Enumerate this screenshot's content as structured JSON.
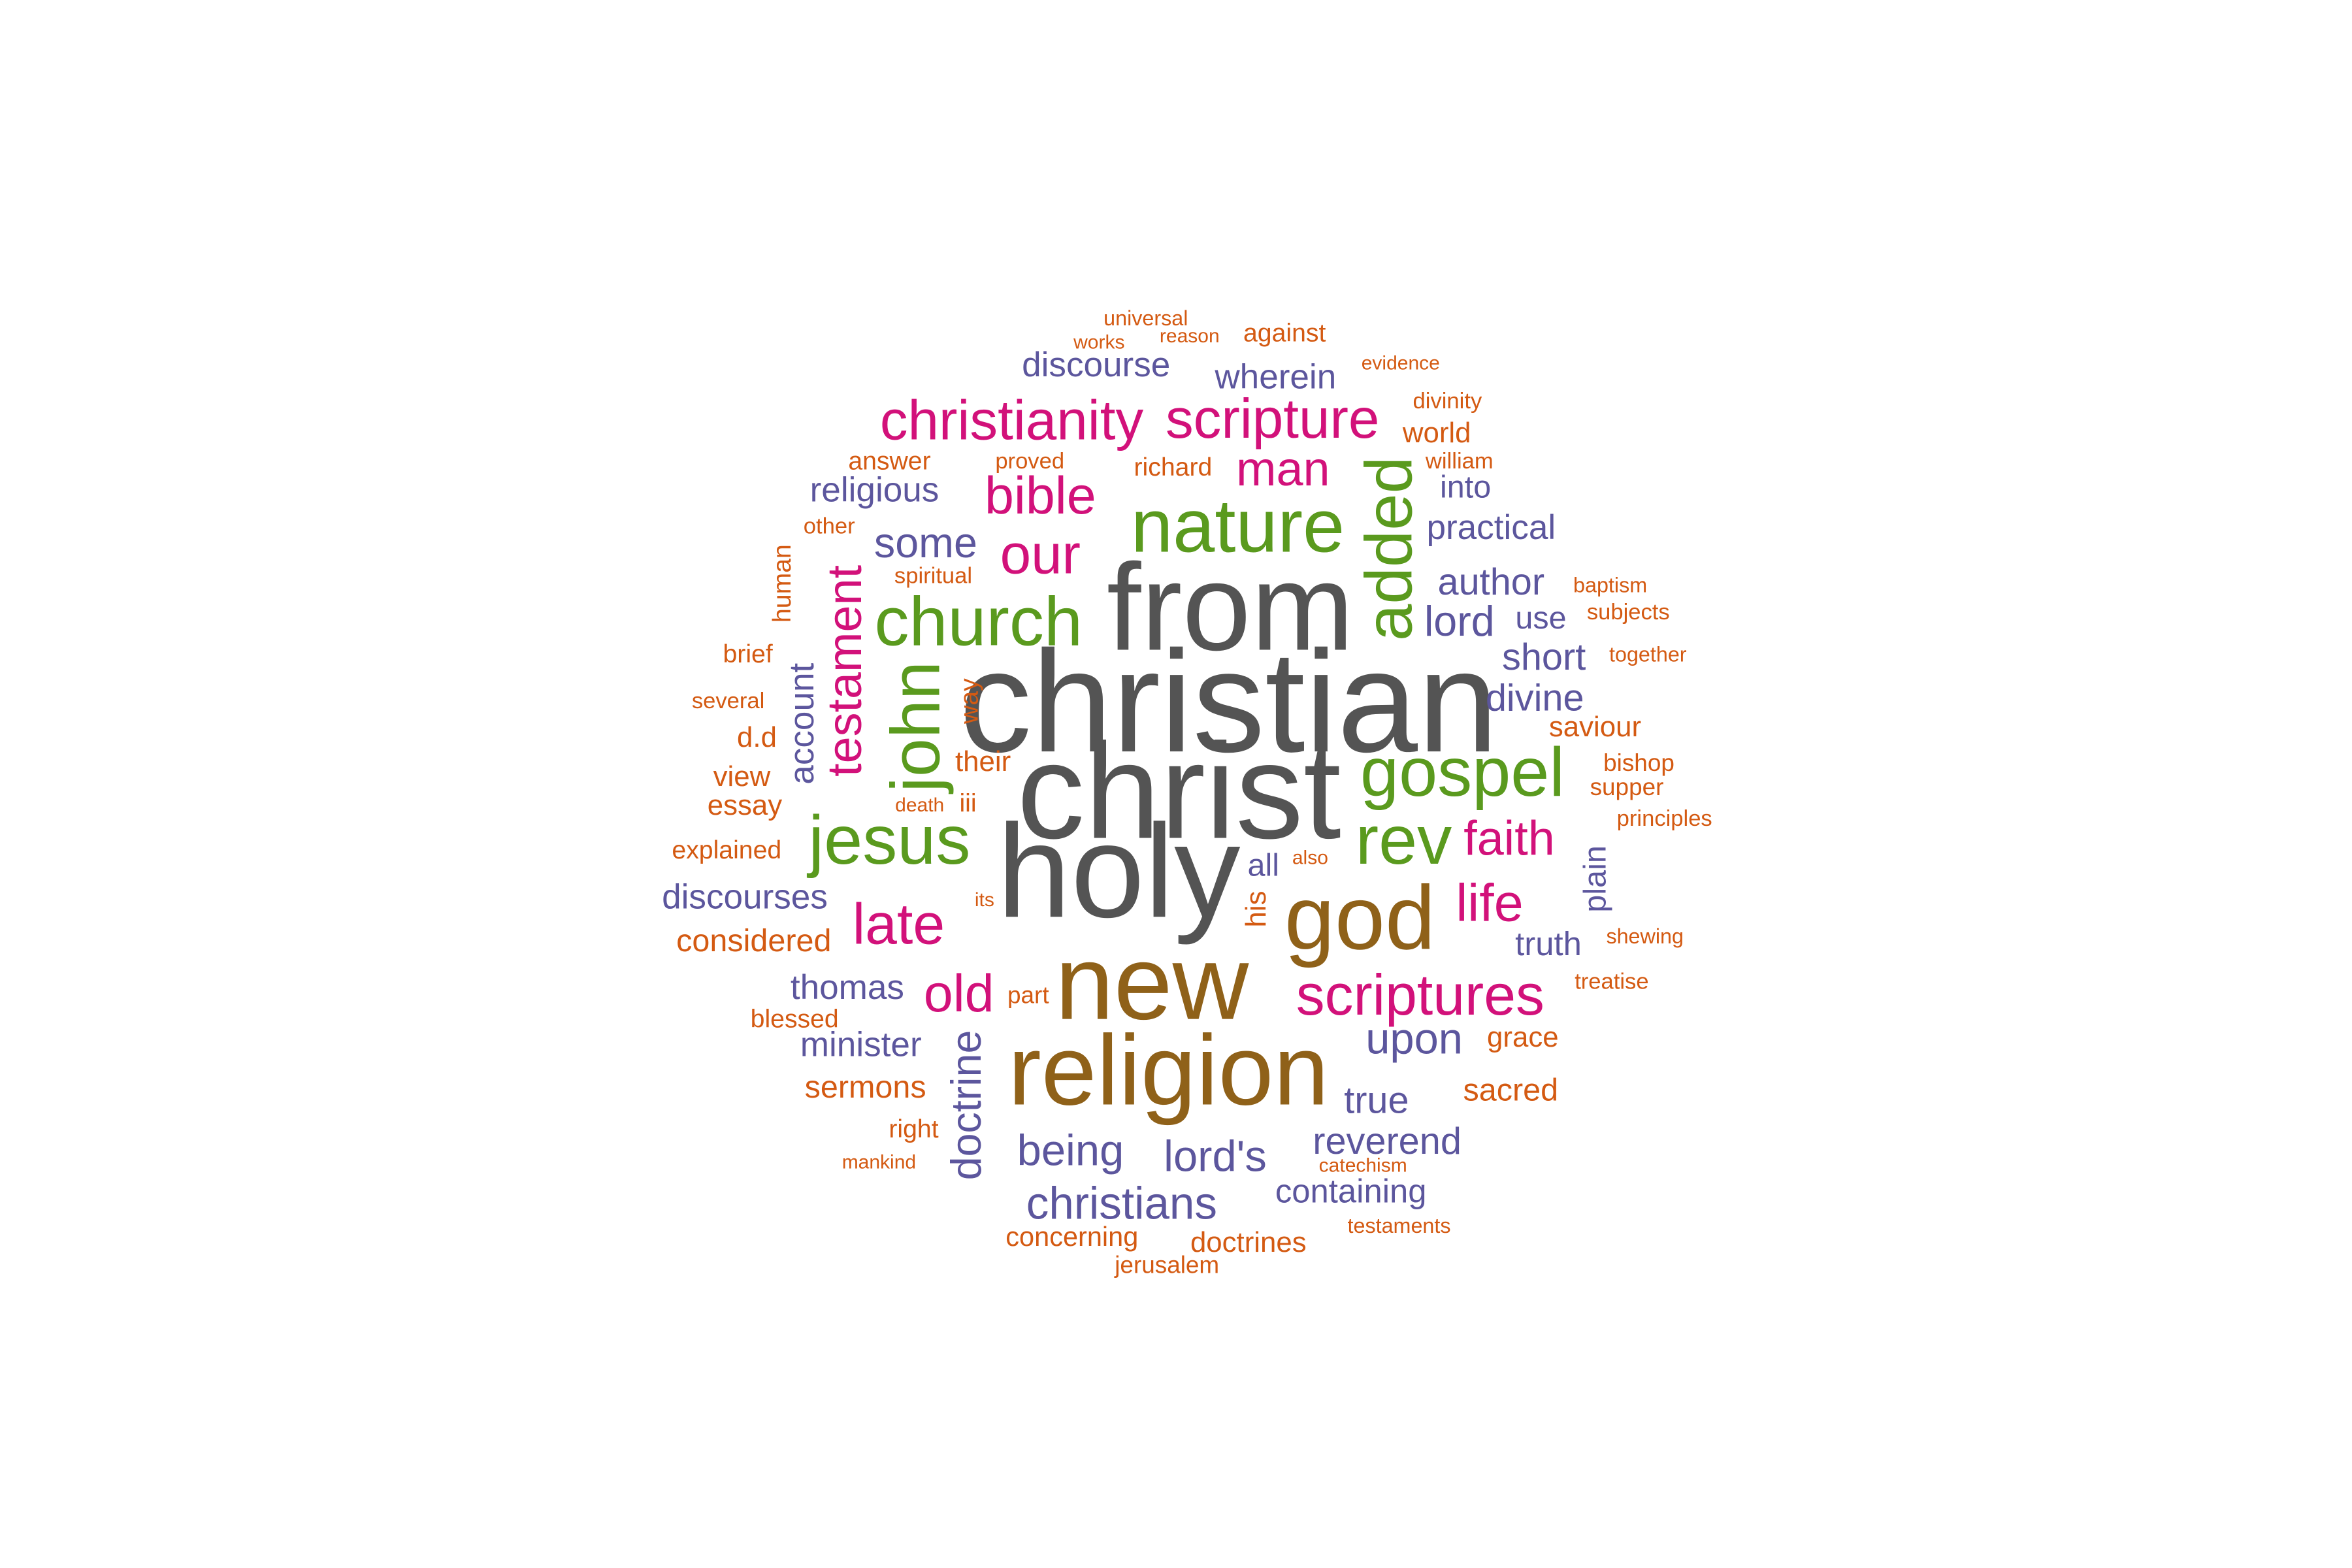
{
  "chart_data": {
    "type": "wordcloud",
    "title": "",
    "colors": {
      "gray": "#545454",
      "brown": "#8f6119",
      "green": "#5a9a1e",
      "magenta": "#d2117a",
      "purple": "#5c569d",
      "orange": "#d45a12"
    },
    "words": [
      {
        "text": "christian",
        "weight": 100,
        "color": "gray"
      },
      {
        "text": "christ",
        "weight": 98,
        "color": "gray"
      },
      {
        "text": "holy",
        "weight": 92,
        "color": "gray"
      },
      {
        "text": "from",
        "weight": 90,
        "color": "gray"
      },
      {
        "text": "new",
        "weight": 80,
        "color": "brown"
      },
      {
        "text": "religion",
        "weight": 78,
        "color": "brown"
      },
      {
        "text": "god",
        "weight": 74,
        "color": "brown"
      },
      {
        "text": "nature",
        "weight": 58,
        "color": "green"
      },
      {
        "text": "church",
        "weight": 55,
        "color": "green"
      },
      {
        "text": "gospel",
        "weight": 55,
        "color": "green"
      },
      {
        "text": "jesus",
        "weight": 55,
        "color": "green"
      },
      {
        "text": "john",
        "weight": 55,
        "color": "green"
      },
      {
        "text": "rev",
        "weight": 55,
        "color": "green"
      },
      {
        "text": "added",
        "weight": 50,
        "color": "green"
      },
      {
        "text": "christianity",
        "weight": 45,
        "color": "magenta"
      },
      {
        "text": "scripture",
        "weight": 45,
        "color": "magenta"
      },
      {
        "text": "scriptures",
        "weight": 45,
        "color": "magenta"
      },
      {
        "text": "late",
        "weight": 44,
        "color": "magenta"
      },
      {
        "text": "our",
        "weight": 43,
        "color": "magenta"
      },
      {
        "text": "bible",
        "weight": 42,
        "color": "magenta"
      },
      {
        "text": "life",
        "weight": 42,
        "color": "magenta"
      },
      {
        "text": "old",
        "weight": 42,
        "color": "magenta"
      },
      {
        "text": "faith",
        "weight": 40,
        "color": "magenta"
      },
      {
        "text": "man",
        "weight": 40,
        "color": "magenta"
      },
      {
        "text": "testament",
        "weight": 40,
        "color": "magenta"
      },
      {
        "text": "christians",
        "weight": 35,
        "color": "purple"
      },
      {
        "text": "doctrine",
        "weight": 35,
        "color": "purple"
      },
      {
        "text": "being",
        "weight": 33,
        "color": "purple"
      },
      {
        "text": "lord's",
        "weight": 33,
        "color": "purple"
      },
      {
        "text": "upon",
        "weight": 33,
        "color": "purple"
      },
      {
        "text": "lord",
        "weight": 32,
        "color": "purple"
      },
      {
        "text": "some",
        "weight": 32,
        "color": "purple"
      },
      {
        "text": "author",
        "weight": 30,
        "color": "purple"
      },
      {
        "text": "divine",
        "weight": 30,
        "color": "purple"
      },
      {
        "text": "reverend",
        "weight": 30,
        "color": "purple"
      },
      {
        "text": "short",
        "weight": 30,
        "color": "purple"
      },
      {
        "text": "true",
        "weight": 30,
        "color": "purple"
      },
      {
        "text": "account",
        "weight": 28,
        "color": "purple"
      },
      {
        "text": "discourse",
        "weight": 28,
        "color": "purple"
      },
      {
        "text": "discourses",
        "weight": 28,
        "color": "purple"
      },
      {
        "text": "minister",
        "weight": 28,
        "color": "purple"
      },
      {
        "text": "practical",
        "weight": 28,
        "color": "purple"
      },
      {
        "text": "religious",
        "weight": 28,
        "color": "purple"
      },
      {
        "text": "thomas",
        "weight": 28,
        "color": "purple"
      },
      {
        "text": "wherein",
        "weight": 28,
        "color": "purple"
      },
      {
        "text": "containing",
        "weight": 27,
        "color": "purple"
      },
      {
        "text": "truth",
        "weight": 27,
        "color": "purple"
      },
      {
        "text": "all",
        "weight": 26,
        "color": "purple"
      },
      {
        "text": "into",
        "weight": 26,
        "color": "purple"
      },
      {
        "text": "plain",
        "weight": 26,
        "color": "purple"
      },
      {
        "text": "use",
        "weight": 26,
        "color": "purple"
      },
      {
        "text": "considered",
        "weight": 26,
        "color": "orange"
      },
      {
        "text": "sacred",
        "weight": 26,
        "color": "orange"
      },
      {
        "text": "sermons",
        "weight": 26,
        "color": "orange"
      },
      {
        "text": "concerning",
        "weight": 24,
        "color": "orange"
      },
      {
        "text": "doctrines",
        "weight": 24,
        "color": "orange"
      },
      {
        "text": "essay",
        "weight": 24,
        "color": "orange"
      },
      {
        "text": "grace",
        "weight": 24,
        "color": "orange"
      },
      {
        "text": "saviour",
        "weight": 24,
        "color": "orange"
      },
      {
        "text": "their",
        "weight": 24,
        "color": "orange"
      },
      {
        "text": "view",
        "weight": 24,
        "color": "orange"
      },
      {
        "text": "world",
        "weight": 24,
        "color": "orange"
      },
      {
        "text": "against",
        "weight": 22,
        "color": "orange"
      },
      {
        "text": "answer",
        "weight": 22,
        "color": "orange"
      },
      {
        "text": "blessed",
        "weight": 22,
        "color": "orange"
      },
      {
        "text": "brief",
        "weight": 22,
        "color": "orange"
      },
      {
        "text": "d.d",
        "weight": 22,
        "color": "orange"
      },
      {
        "text": "explained",
        "weight": 22,
        "color": "orange"
      },
      {
        "text": "his",
        "weight": 22,
        "color": "orange"
      },
      {
        "text": "human",
        "weight": 22,
        "color": "orange"
      },
      {
        "text": "iii",
        "weight": 22,
        "color": "orange"
      },
      {
        "text": "richard",
        "weight": 22,
        "color": "orange"
      },
      {
        "text": "right",
        "weight": 22,
        "color": "orange"
      },
      {
        "text": "way",
        "weight": 22,
        "color": "orange"
      },
      {
        "text": "bishop",
        "weight": 20,
        "color": "orange"
      },
      {
        "text": "divinity",
        "weight": 20,
        "color": "orange"
      },
      {
        "text": "jerusalem",
        "weight": 20,
        "color": "orange"
      },
      {
        "text": "part",
        "weight": 20,
        "color": "orange"
      },
      {
        "text": "principles",
        "weight": 20,
        "color": "orange"
      },
      {
        "text": "several",
        "weight": 20,
        "color": "orange"
      },
      {
        "text": "spiritual",
        "weight": 20,
        "color": "orange"
      },
      {
        "text": "subjects",
        "weight": 20,
        "color": "orange"
      },
      {
        "text": "supper",
        "weight": 20,
        "color": "orange"
      },
      {
        "text": "treatise",
        "weight": 20,
        "color": "orange"
      },
      {
        "text": "william",
        "weight": 20,
        "color": "orange"
      },
      {
        "text": "also",
        "weight": 18,
        "color": "orange"
      },
      {
        "text": "baptism",
        "weight": 18,
        "color": "orange"
      },
      {
        "text": "catechism",
        "weight": 18,
        "color": "orange"
      },
      {
        "text": "death",
        "weight": 18,
        "color": "orange"
      },
      {
        "text": "evidence",
        "weight": 18,
        "color": "orange"
      },
      {
        "text": "its",
        "weight": 18,
        "color": "orange"
      },
      {
        "text": "mankind",
        "weight": 18,
        "color": "orange"
      },
      {
        "text": "other",
        "weight": 18,
        "color": "orange"
      },
      {
        "text": "proved",
        "weight": 18,
        "color": "orange"
      },
      {
        "text": "reason",
        "weight": 18,
        "color": "orange"
      },
      {
        "text": "shewing",
        "weight": 18,
        "color": "orange"
      },
      {
        "text": "testaments",
        "weight": 18,
        "color": "orange"
      },
      {
        "text": "together",
        "weight": 18,
        "color": "orange"
      },
      {
        "text": "universal",
        "weight": 18,
        "color": "orange"
      },
      {
        "text": "works",
        "weight": 18,
        "color": "orange"
      }
    ]
  }
}
